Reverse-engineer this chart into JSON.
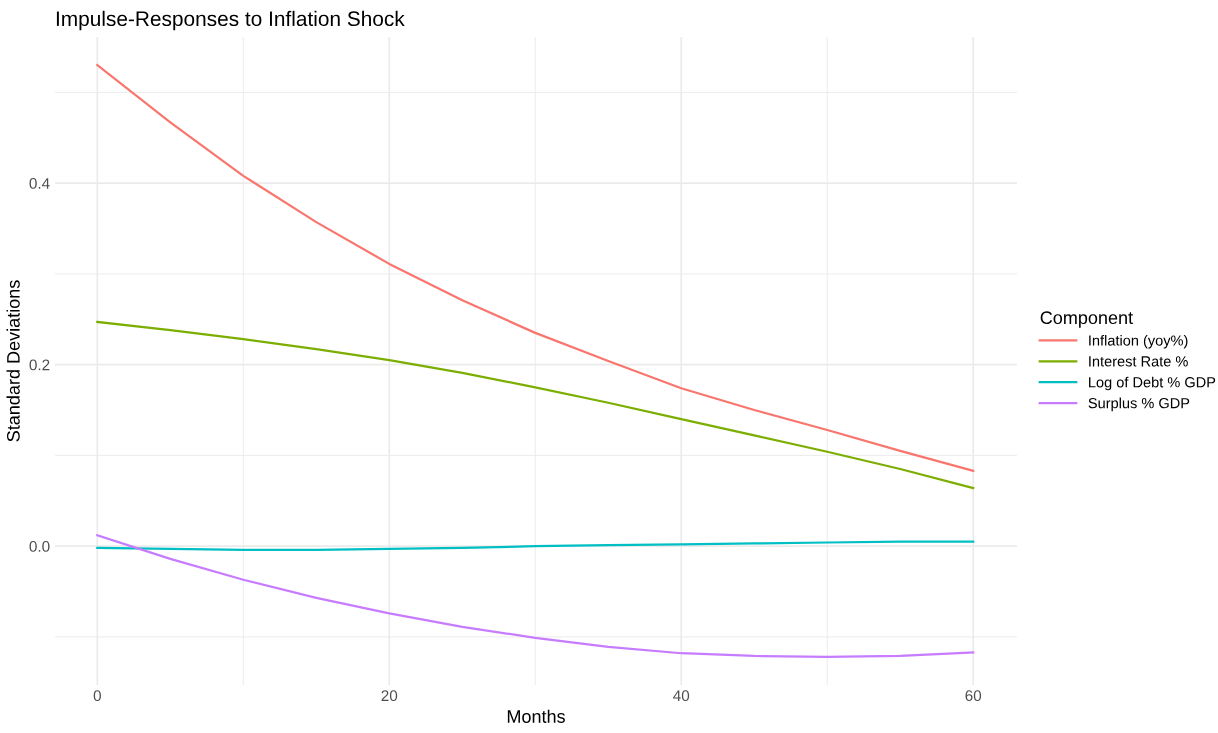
{
  "chart_data": {
    "type": "line",
    "title": "Impulse-Responses to Inflation Shock",
    "xlabel": "Months",
    "ylabel": "Standard Deviations",
    "legend_title": "Component",
    "legend": "right",
    "grid": true,
    "x": [
      0,
      5,
      10,
      15,
      20,
      25,
      30,
      35,
      40,
      45,
      50,
      55,
      60
    ],
    "series": [
      {
        "name": "Inflation (yoy%)",
        "color": "#f8766d",
        "values": [
          0.53,
          0.467,
          0.408,
          0.357,
          0.311,
          0.271,
          0.235,
          0.204,
          0.174,
          0.15,
          0.128,
          0.105,
          0.083
        ]
      },
      {
        "name": "Interest Rate %",
        "color": "#7cae00",
        "values": [
          0.247,
          0.238,
          0.228,
          0.217,
          0.205,
          0.191,
          0.175,
          0.158,
          0.14,
          0.122,
          0.104,
          0.085,
          0.064
        ]
      },
      {
        "name": "Log of Debt % GDP",
        "color": "#00bfc4",
        "values": [
          -0.002,
          -0.003,
          -0.004,
          -0.004,
          -0.003,
          -0.002,
          0.0,
          0.001,
          0.002,
          0.003,
          0.004,
          0.005,
          0.005
        ]
      },
      {
        "name": "Surplus % GDP",
        "color": "#c77cff",
        "values": [
          0.012,
          -0.014,
          -0.037,
          -0.057,
          -0.074,
          -0.089,
          -0.101,
          -0.111,
          -0.118,
          -0.121,
          -0.122,
          -0.121,
          -0.117
        ]
      }
    ],
    "xlim": [
      -2.9,
      63
    ],
    "ylim": [
      -0.153,
      0.561
    ],
    "xticks": [
      0,
      {
        "value": 10,
        "label": null
      },
      20,
      {
        "value": 30,
        "label": null
      },
      40,
      {
        "value": 50,
        "label": null
      },
      60
    ],
    "yticks": [
      {
        "value": -0.1,
        "label": null
      },
      {
        "value": 0,
        "label": "0.0"
      },
      {
        "value": 0.1,
        "label": null
      },
      0.2,
      {
        "value": 0.3,
        "label": null
      },
      0.4,
      {
        "value": 0.5,
        "label": null
      }
    ]
  }
}
